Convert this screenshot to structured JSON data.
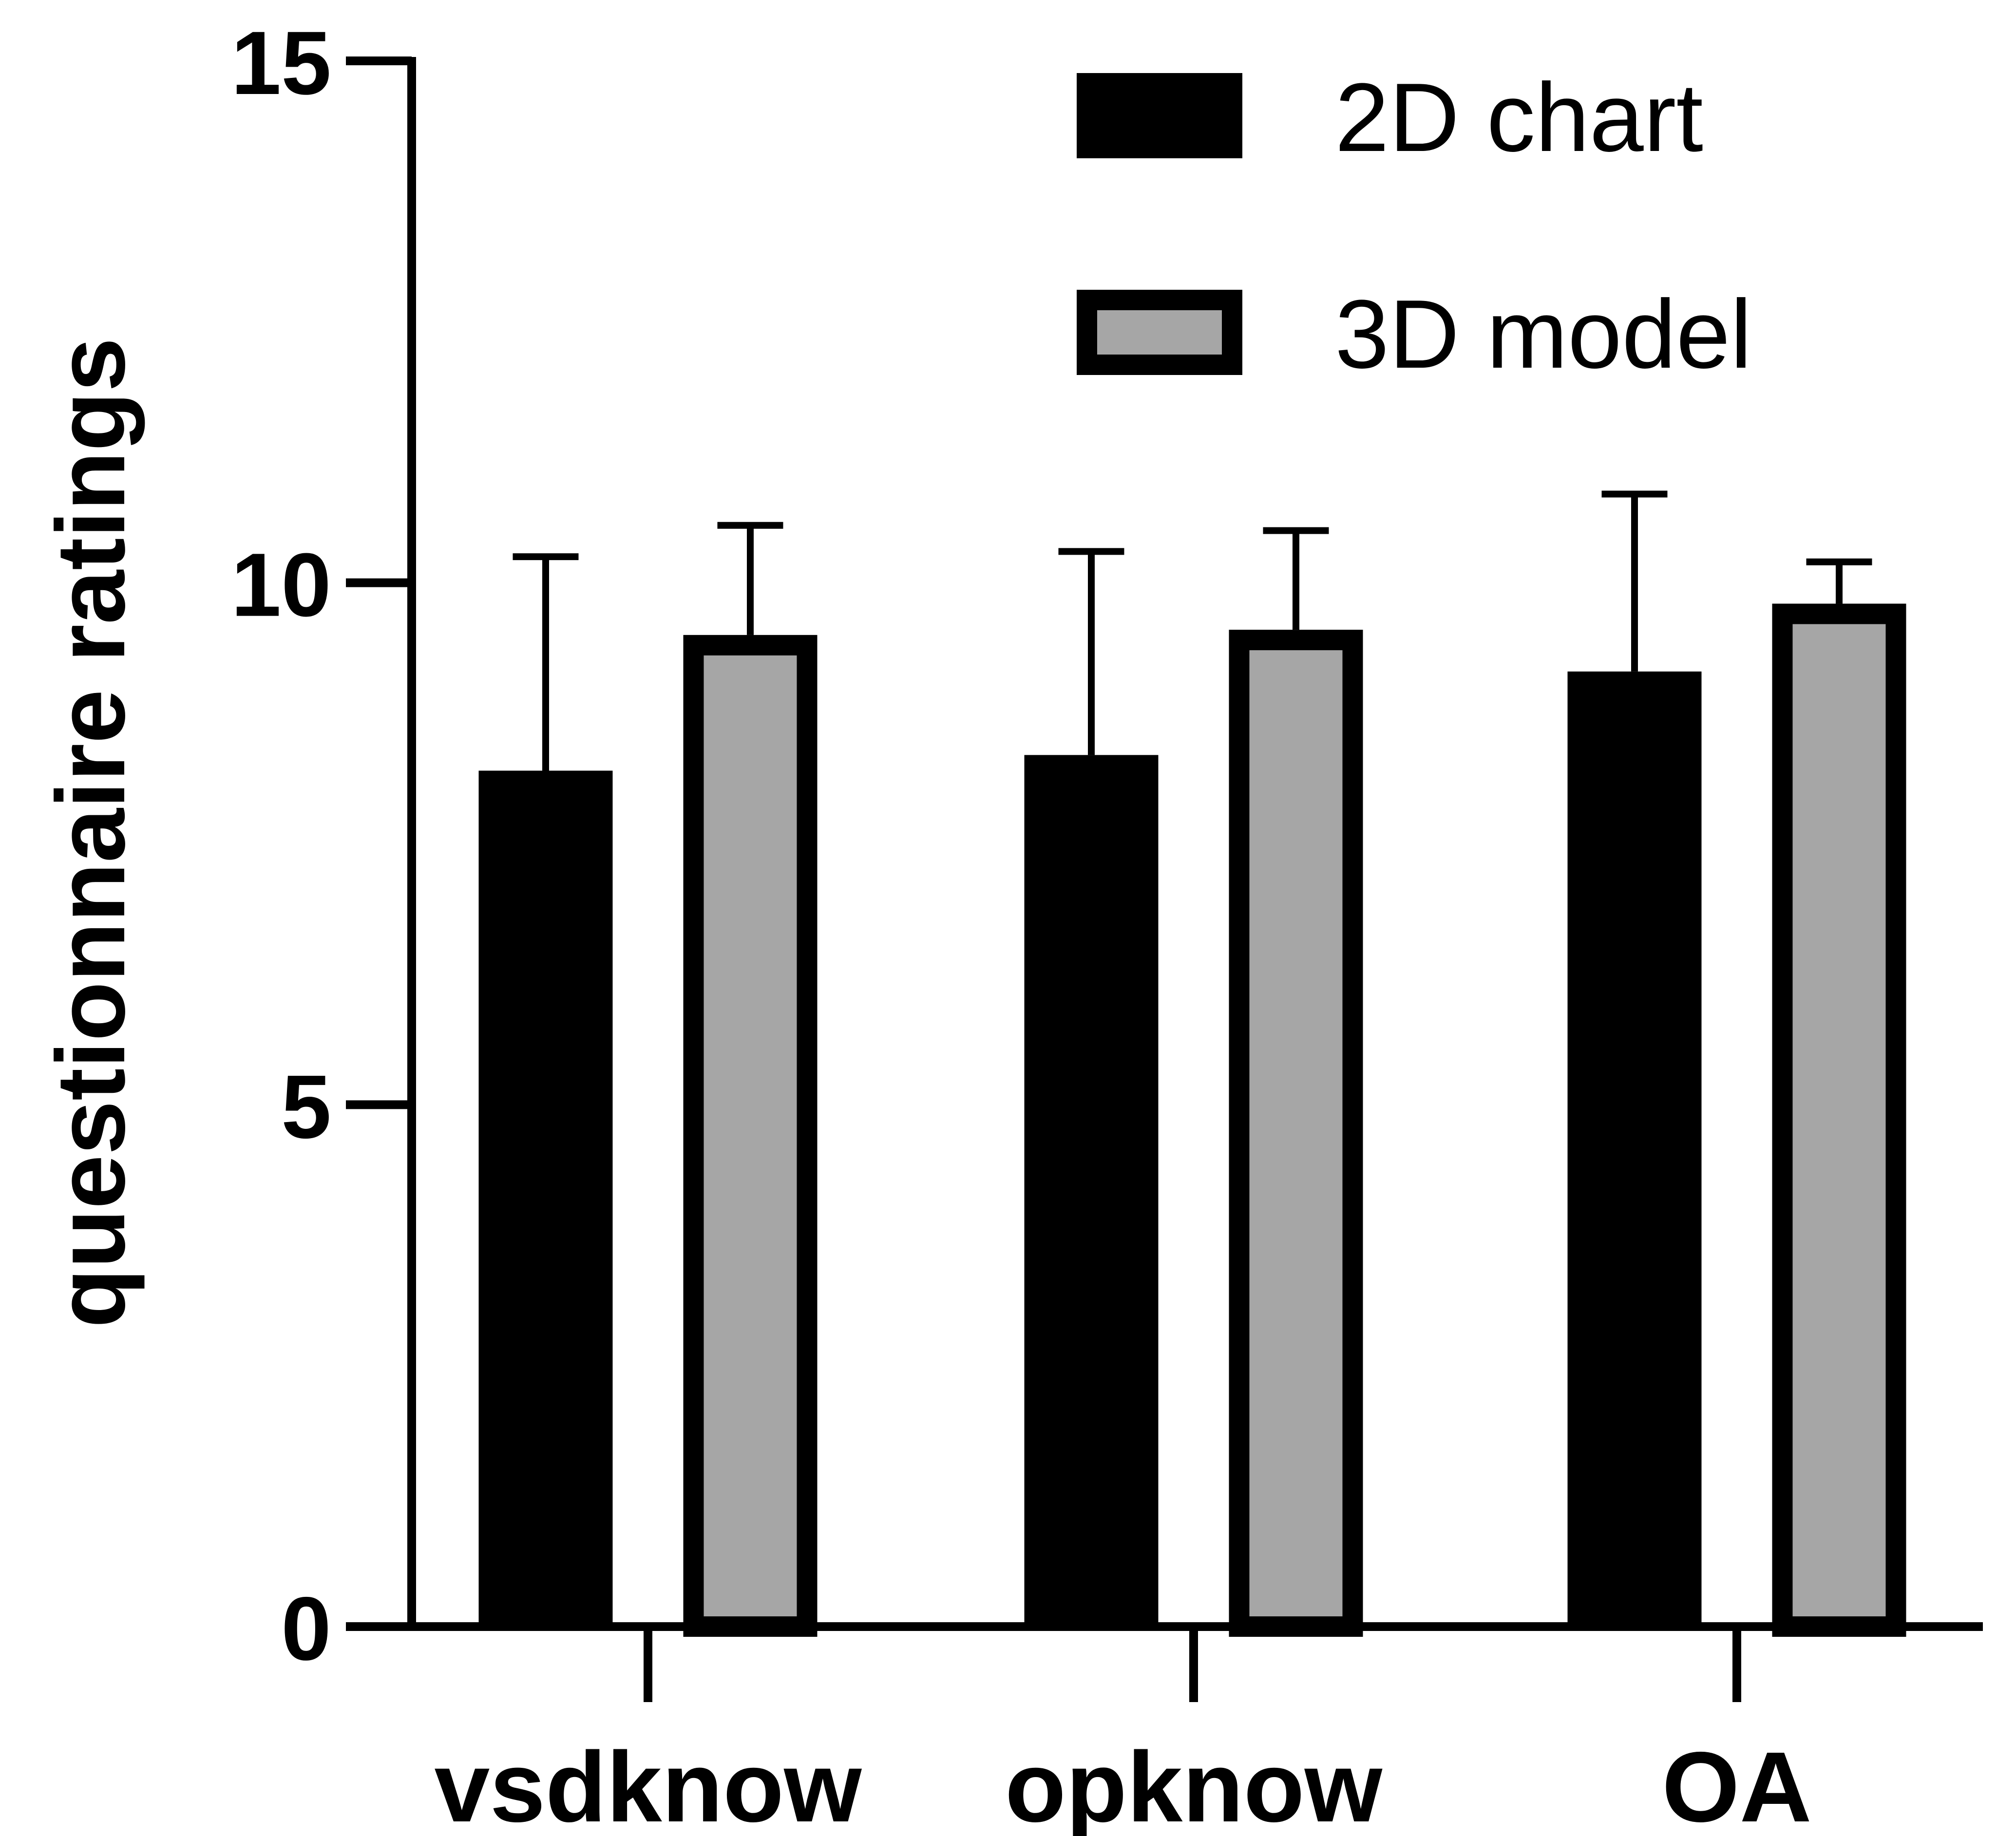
{
  "chart_data": {
    "type": "bar",
    "title": "",
    "xlabel": "",
    "ylabel": "questionnaire ratings",
    "ylim": [
      0,
      15
    ],
    "yticks": [
      0,
      5,
      10,
      15
    ],
    "categories": [
      "vsdknow",
      "opknow",
      "OA"
    ],
    "series": [
      {
        "name": "2D chart",
        "values": [
          8.2,
          8.35,
          9.15
        ],
        "errors": [
          2.05,
          1.95,
          1.7
        ],
        "color": "#000000",
        "edge": "#000000"
      },
      {
        "name": "3D model",
        "values": [
          9.5,
          9.55,
          9.8
        ],
        "errors": [
          1.05,
          0.95,
          0.4
        ],
        "color": "#a6a6a6",
        "edge": "#000000"
      }
    ],
    "legend": "top-right"
  }
}
